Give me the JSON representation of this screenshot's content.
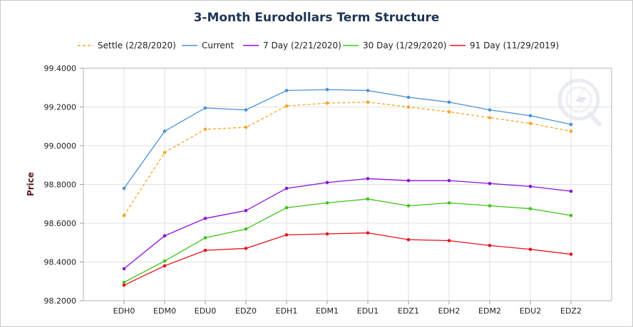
{
  "chart_data": {
    "type": "line",
    "title": "3-Month Eurodollars Term Structure",
    "xlabel": "",
    "ylabel": "Price",
    "categories": [
      "EDH0",
      "EDM0",
      "EDU0",
      "EDZ0",
      "EDH1",
      "EDM1",
      "EDU1",
      "EDZ1",
      "EDH2",
      "EDM2",
      "EDU2",
      "EDZ2"
    ],
    "ylim": [
      98.2,
      99.4
    ],
    "yticks": [
      "98.2000",
      "98.4000",
      "98.6000",
      "98.8000",
      "99.0000",
      "99.2000",
      "99.4000"
    ],
    "grid": true,
    "legend_position": "top",
    "series": [
      {
        "name": "Settle (2/28/2020)",
        "color": "#f5a623",
        "dashed": true,
        "values": [
          98.64,
          98.965,
          99.085,
          99.095,
          99.205,
          99.22,
          99.225,
          99.2,
          99.175,
          99.145,
          99.115,
          99.075
        ]
      },
      {
        "name": "Current",
        "color": "#4a90d9",
        "dashed": false,
        "values": [
          98.78,
          99.075,
          99.195,
          99.185,
          99.285,
          99.29,
          99.285,
          99.25,
          99.225,
          99.185,
          99.155,
          99.11
        ]
      },
      {
        "name": "7 Day (2/21/2020)",
        "color": "#8b10d8",
        "dashed": false,
        "values": [
          98.365,
          98.535,
          98.625,
          98.665,
          98.78,
          98.81,
          98.83,
          98.82,
          98.82,
          98.805,
          98.79,
          98.765
        ]
      },
      {
        "name": "30 Day (1/29/2020)",
        "color": "#3ec41a",
        "dashed": false,
        "values": [
          98.295,
          98.405,
          98.525,
          98.57,
          98.68,
          98.705,
          98.725,
          98.69,
          98.705,
          98.69,
          98.675,
          98.64
        ]
      },
      {
        "name": "91 Day (11/29/2019)",
        "color": "#e8101a",
        "dashed": false,
        "values": [
          98.28,
          98.38,
          98.46,
          98.47,
          98.54,
          98.545,
          98.55,
          98.515,
          98.51,
          98.485,
          98.465,
          98.44
        ]
      }
    ]
  }
}
